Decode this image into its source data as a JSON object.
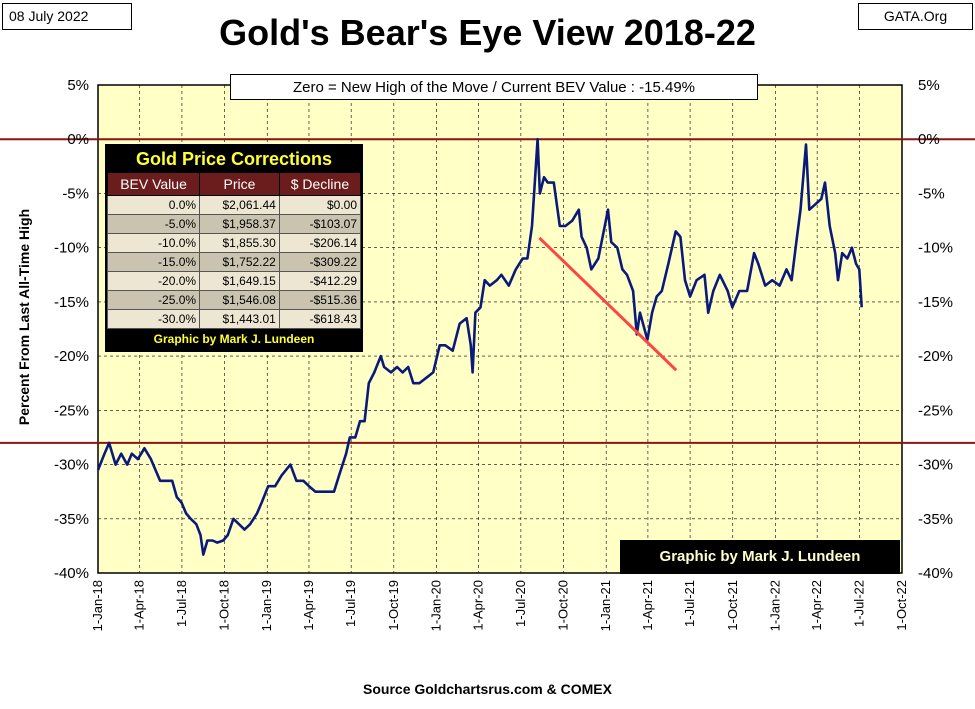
{
  "header": {
    "date": "08 July 2022",
    "site": "GATA.Org",
    "title": "Gold's Bear's Eye View 2018-22",
    "zero_note": "Zero = New High of the Move / Current  BEV Value : -15.49%",
    "source": "Source Goldchartsrus.com & COMEX",
    "credit": "Graphic by Mark J. Lundeen"
  },
  "corrections": {
    "title": "Gold Price Corrections",
    "headers": [
      "BEV Value",
      "Price",
      "$ Decline"
    ],
    "rows": [
      [
        "0.0%",
        "$2,061.44",
        "$0.00"
      ],
      [
        "-5.0%",
        "$1,958.37",
        "-$103.07"
      ],
      [
        "-10.0%",
        "$1,855.30",
        "-$206.14"
      ],
      [
        "-15.0%",
        "$1,752.22",
        "-$309.22"
      ],
      [
        "-20.0%",
        "$1,649.15",
        "-$412.29"
      ],
      [
        "-25.0%",
        "$1,546.08",
        "-$515.36"
      ],
      [
        "-30.0%",
        "$1,443.01",
        "-$618.43"
      ]
    ],
    "footer": "Graphic by Mark J. Lundeen"
  },
  "colors": {
    "plot_bg": "#ffffc6",
    "series": "#0a1a7a",
    "ref_lines": "#8b1414",
    "trend": "#ff4444"
  },
  "chart_data": {
    "type": "line",
    "title": "Gold's Bear's Eye View 2018-22",
    "ylabel": "Percent  From Last  All-Time  High",
    "xlabel": "",
    "ylim": [
      -40,
      5
    ],
    "yticks": [
      5,
      0,
      -5,
      -10,
      -15,
      -20,
      -25,
      -30,
      -35,
      -40
    ],
    "ytick_labels": [
      "5%",
      "0%",
      "-5%",
      "-10%",
      "-15%",
      "-20%",
      "-25%",
      "-30%",
      "-35%",
      "-40%"
    ],
    "xlim": [
      "2018-01-01",
      "2022-10-01"
    ],
    "xticks": [
      "2018-01-01",
      "2018-04-01",
      "2018-07-01",
      "2018-10-01",
      "2019-01-01",
      "2019-04-01",
      "2019-07-01",
      "2019-10-01",
      "2020-01-01",
      "2020-04-01",
      "2020-07-01",
      "2020-10-01",
      "2021-01-01",
      "2021-04-01",
      "2021-07-01",
      "2021-10-01",
      "2022-01-01",
      "2022-04-01",
      "2022-07-01",
      "2022-10-01"
    ],
    "xtick_labels": [
      "1-Jan-18",
      "1-Apr-18",
      "1-Jul-18",
      "1-Oct-18",
      "1-Jan-19",
      "1-Apr-19",
      "1-Jul-19",
      "1-Oct-19",
      "1-Jan-20",
      "1-Apr-20",
      "1-Jul-20",
      "1-Oct-20",
      "1-Jan-21",
      "1-Apr-21",
      "1-Jul-21",
      "1-Oct-21",
      "1-Jan-22",
      "1-Apr-22",
      "1-Jul-22",
      "1-Oct-22"
    ],
    "grid": true,
    "reference_lines": [
      0,
      -28
    ],
    "trend_line": {
      "start": [
        "2020-08-10",
        -9.1
      ],
      "end": [
        "2021-06-01",
        -21.3
      ]
    },
    "series": [
      {
        "points": [
          [
            "2018-01-01",
            -30.5
          ],
          [
            "2018-01-15",
            -29.0
          ],
          [
            "2018-01-25",
            -28.0
          ],
          [
            "2018-02-08",
            -30.0
          ],
          [
            "2018-02-20",
            -29.0
          ],
          [
            "2018-03-05",
            -30.0
          ],
          [
            "2018-03-15",
            -29.0
          ],
          [
            "2018-03-28",
            -29.5
          ],
          [
            "2018-04-11",
            -28.5
          ],
          [
            "2018-04-25",
            -29.5
          ],
          [
            "2018-05-05",
            -30.5
          ],
          [
            "2018-05-15",
            -31.5
          ],
          [
            "2018-05-25",
            -31.5
          ],
          [
            "2018-06-10",
            -31.5
          ],
          [
            "2018-06-20",
            -33.0
          ],
          [
            "2018-06-30",
            -33.5
          ],
          [
            "2018-07-10",
            -34.5
          ],
          [
            "2018-07-20",
            -35.0
          ],
          [
            "2018-08-01",
            -35.5
          ],
          [
            "2018-08-10",
            -36.5
          ],
          [
            "2018-08-16",
            -38.3
          ],
          [
            "2018-08-25",
            -37.0
          ],
          [
            "2018-09-05",
            -37.0
          ],
          [
            "2018-09-15",
            -37.2
          ],
          [
            "2018-09-28",
            -37.0
          ],
          [
            "2018-10-08",
            -36.5
          ],
          [
            "2018-10-20",
            -35.0
          ],
          [
            "2018-11-01",
            -35.5
          ],
          [
            "2018-11-13",
            -36.0
          ],
          [
            "2018-11-25",
            -35.5
          ],
          [
            "2018-12-10",
            -34.5
          ],
          [
            "2018-12-20",
            -33.5
          ],
          [
            "2019-01-03",
            -32.0
          ],
          [
            "2019-01-18",
            -32.0
          ],
          [
            "2019-02-01",
            -31.0
          ],
          [
            "2019-02-20",
            -30.0
          ],
          [
            "2019-03-05",
            -31.5
          ],
          [
            "2019-03-20",
            -31.5
          ],
          [
            "2019-04-01",
            -32.0
          ],
          [
            "2019-04-15",
            -32.5
          ],
          [
            "2019-05-01",
            -32.5
          ],
          [
            "2019-05-15",
            -32.5
          ],
          [
            "2019-05-25",
            -32.5
          ],
          [
            "2019-06-05",
            -31.0
          ],
          [
            "2019-06-20",
            -29.0
          ],
          [
            "2019-06-28",
            -27.5
          ],
          [
            "2019-07-10",
            -27.5
          ],
          [
            "2019-07-20",
            -26.0
          ],
          [
            "2019-07-30",
            -26.0
          ],
          [
            "2019-08-08",
            -22.5
          ],
          [
            "2019-08-20",
            -21.5
          ],
          [
            "2019-09-03",
            -20.0
          ],
          [
            "2019-09-10",
            -21.0
          ],
          [
            "2019-09-25",
            -21.5
          ],
          [
            "2019-10-08",
            -21.0
          ],
          [
            "2019-10-20",
            -21.5
          ],
          [
            "2019-11-01",
            -21.0
          ],
          [
            "2019-11-12",
            -22.5
          ],
          [
            "2019-11-25",
            -22.5
          ],
          [
            "2019-12-10",
            -22.0
          ],
          [
            "2019-12-25",
            -21.5
          ],
          [
            "2020-01-08",
            -19.0
          ],
          [
            "2020-01-20",
            -19.0
          ],
          [
            "2020-02-05",
            -19.5
          ],
          [
            "2020-02-20",
            -17.0
          ],
          [
            "2020-03-06",
            -16.5
          ],
          [
            "2020-03-15",
            -19.0
          ],
          [
            "2020-03-19",
            -21.5
          ],
          [
            "2020-03-25",
            -16.0
          ],
          [
            "2020-04-05",
            -15.5
          ],
          [
            "2020-04-14",
            -13.0
          ],
          [
            "2020-04-25",
            -13.5
          ],
          [
            "2020-05-10",
            -13.0
          ],
          [
            "2020-05-20",
            -12.5
          ],
          [
            "2020-06-05",
            -13.5
          ],
          [
            "2020-06-20",
            -12.0
          ],
          [
            "2020-07-05",
            -11.0
          ],
          [
            "2020-07-15",
            -11.0
          ],
          [
            "2020-07-25",
            -8.0
          ],
          [
            "2020-08-06",
            0.0
          ],
          [
            "2020-08-11",
            -5.0
          ],
          [
            "2020-08-20",
            -3.5
          ],
          [
            "2020-08-28",
            -4.0
          ],
          [
            "2020-09-10",
            -4.0
          ],
          [
            "2020-09-23",
            -8.0
          ],
          [
            "2020-10-05",
            -8.0
          ],
          [
            "2020-10-20",
            -7.5
          ],
          [
            "2020-11-03",
            -6.5
          ],
          [
            "2020-11-09",
            -9.0
          ],
          [
            "2020-11-20",
            -10.0
          ],
          [
            "2020-11-30",
            -12.0
          ],
          [
            "2020-12-15",
            -11.0
          ],
          [
            "2021-01-05",
            -6.5
          ],
          [
            "2021-01-12",
            -9.5
          ],
          [
            "2021-01-25",
            -10.0
          ],
          [
            "2021-02-05",
            -12.0
          ],
          [
            "2021-02-15",
            -12.5
          ],
          [
            "2021-02-28",
            -14.0
          ],
          [
            "2021-03-08",
            -18.0
          ],
          [
            "2021-03-15",
            -16.0
          ],
          [
            "2021-03-31",
            -18.5
          ],
          [
            "2021-04-10",
            -16.0
          ],
          [
            "2021-04-20",
            -14.5
          ],
          [
            "2021-05-01",
            -14.0
          ],
          [
            "2021-05-15",
            -11.5
          ],
          [
            "2021-05-31",
            -8.5
          ],
          [
            "2021-06-10",
            -9.0
          ],
          [
            "2021-06-20",
            -13.0
          ],
          [
            "2021-07-01",
            -14.5
          ],
          [
            "2021-07-15",
            -13.0
          ],
          [
            "2021-08-01",
            -12.5
          ],
          [
            "2021-08-09",
            -16.0
          ],
          [
            "2021-08-20",
            -14.0
          ],
          [
            "2021-09-03",
            -12.5
          ],
          [
            "2021-09-20",
            -14.0
          ],
          [
            "2021-09-30",
            -15.5
          ],
          [
            "2021-10-15",
            -14.0
          ],
          [
            "2021-11-01",
            -14.0
          ],
          [
            "2021-11-16",
            -10.5
          ],
          [
            "2021-11-25",
            -11.5
          ],
          [
            "2021-12-10",
            -13.5
          ],
          [
            "2021-12-25",
            -13.0
          ],
          [
            "2022-01-10",
            -13.5
          ],
          [
            "2022-01-25",
            -12.0
          ],
          [
            "2022-02-05",
            -13.0
          ],
          [
            "2022-02-15",
            -9.5
          ],
          [
            "2022-02-24",
            -6.5
          ],
          [
            "2022-03-08",
            -0.5
          ],
          [
            "2022-03-15",
            -6.5
          ],
          [
            "2022-03-28",
            -6.0
          ],
          [
            "2022-04-10",
            -5.5
          ],
          [
            "2022-04-18",
            -4.0
          ],
          [
            "2022-04-28",
            -8.0
          ],
          [
            "2022-05-10",
            -10.5
          ],
          [
            "2022-05-16",
            -13.0
          ],
          [
            "2022-05-25",
            -10.5
          ],
          [
            "2022-06-05",
            -11.0
          ],
          [
            "2022-06-15",
            -10.0
          ],
          [
            "2022-06-24",
            -11.5
          ],
          [
            "2022-07-01",
            -12.0
          ],
          [
            "2022-07-06",
            -15.5
          ]
        ]
      }
    ]
  }
}
